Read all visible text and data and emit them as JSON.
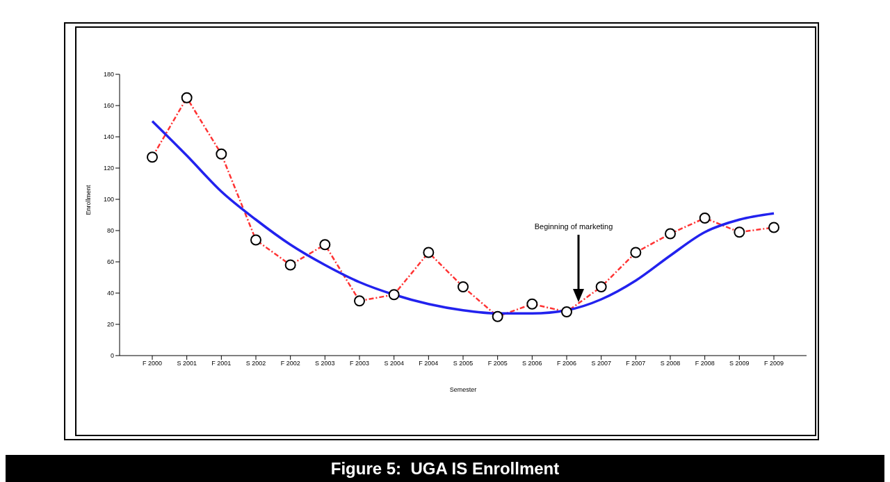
{
  "chart_data": {
    "type": "line",
    "title": "Figure 5:  UGA IS Enrollment",
    "xlabel": "Semester",
    "ylabel": "Enrollment",
    "categories": [
      "F 2000",
      "S 2001",
      "F 2001",
      "S 2002",
      "F 2002",
      "S 2003",
      "F 2003",
      "S 2004",
      "F 2004",
      "S 2005",
      "F 2005",
      "S 2006",
      "F 2006",
      "S 2007",
      "F 2007",
      "S 2008",
      "F 2008",
      "S 2009",
      "F 2009"
    ],
    "series": [
      {
        "color": "#ff3333",
        "line_style": "dashed",
        "marker": "circle",
        "values": [
          127,
          165,
          129,
          74,
          58,
          71,
          35,
          39,
          66,
          44,
          25,
          33,
          28,
          44,
          66,
          78,
          88,
          79,
          82
        ]
      },
      {
        "color": "#2222ee",
        "line_style": "solid",
        "marker": "none",
        "values": [
          150,
          128,
          105,
          87,
          71,
          58,
          47,
          39,
          33,
          29,
          27,
          27,
          29,
          36,
          48,
          64,
          79,
          87,
          91
        ]
      }
    ],
    "ylim": [
      0,
      180
    ],
    "yticks": [
      0,
      20,
      40,
      60,
      80,
      100,
      120,
      140,
      160,
      180
    ],
    "grid": false,
    "legend": false,
    "annotations": [
      "Beginning of marketing"
    ]
  }
}
